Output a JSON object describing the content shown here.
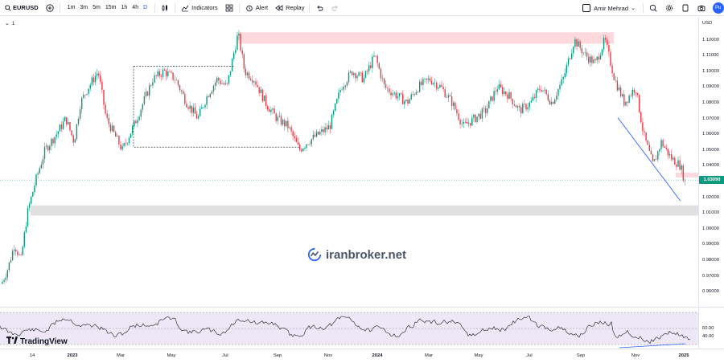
{
  "toolbar": {
    "symbol": "EURUSD",
    "timeframes": [
      "1m",
      "3m",
      "5m",
      "15m",
      "1h",
      "4h",
      "D"
    ],
    "active_timeframe": "D",
    "indicators_label": "Indicators",
    "alert_label": "Alert",
    "replay_label": "Replay",
    "user_name": "Amir Mehrad",
    "publish_label": "Pu"
  },
  "chart": {
    "indicator_count": "1",
    "currency": "USD",
    "price_labels": [
      "1.12000",
      "1.11000",
      "1.10000",
      "1.09000",
      "1.08000",
      "1.07000",
      "1.06000",
      "1.05000",
      "1.04000",
      "1.02000",
      "1.01000",
      "1.00000",
      "0.99000",
      "0.98000",
      "0.97000",
      "0.96000"
    ],
    "last_price": "1.03090",
    "watermark_text": "iranbroker.net",
    "logo_text": "TradingView"
  },
  "rsi": {
    "labels": [
      "60.00",
      "40.00"
    ]
  },
  "time_axis": {
    "labels": [
      {
        "text": "14",
        "bold": false
      },
      {
        "text": "2023",
        "bold": true
      },
      {
        "text": "Mar",
        "bold": false
      },
      {
        "text": "May",
        "bold": false
      },
      {
        "text": "Jul",
        "bold": false
      },
      {
        "text": "Sep",
        "bold": false
      },
      {
        "text": "Nov",
        "bold": false
      },
      {
        "text": "2024",
        "bold": true
      },
      {
        "text": "Mar",
        "bold": false
      },
      {
        "text": "May",
        "bold": false
      },
      {
        "text": "Jul",
        "bold": false
      },
      {
        "text": "Sep",
        "bold": false
      },
      {
        "text": "Nov",
        "bold": false
      },
      {
        "text": "2025",
        "bold": true
      }
    ]
  },
  "colors": {
    "up": "#089981",
    "down": "#f23645",
    "resistance_zone": "#fdd8dc",
    "support_zone": "#e0e0e0",
    "trendline": "#2962ff",
    "rsi_band": "#ede7f6"
  }
}
